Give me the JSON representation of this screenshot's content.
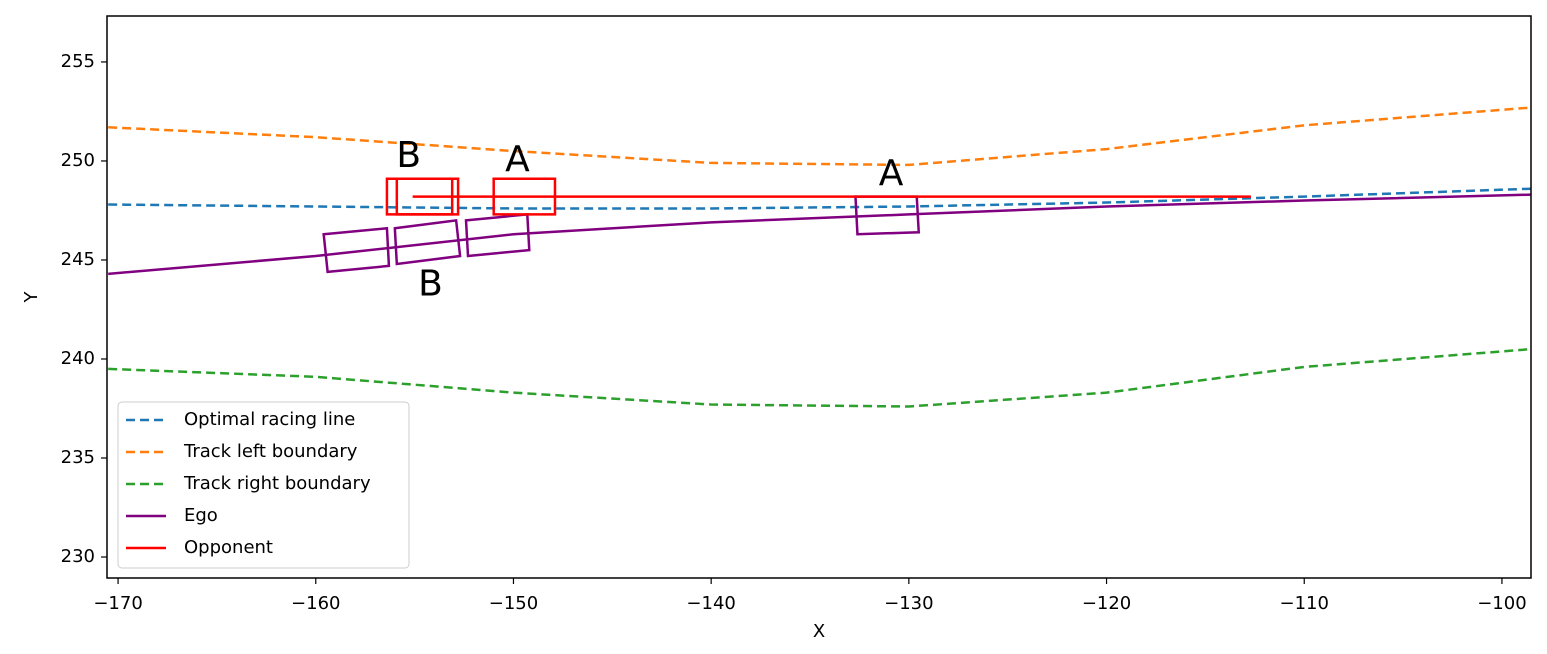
{
  "chart_data": {
    "type": "line",
    "xlabel": "X",
    "ylabel": "Y",
    "xlim": [
      -170.56,
      -98.53
    ],
    "ylim": [
      228.94,
      257.32
    ],
    "xticks": [
      {
        "value": -170,
        "label": "−170"
      },
      {
        "value": -160,
        "label": "−160"
      },
      {
        "value": -150,
        "label": "−150"
      },
      {
        "value": -140,
        "label": "−140"
      },
      {
        "value": -130,
        "label": "−130"
      },
      {
        "value": -120,
        "label": "−120"
      },
      {
        "value": -110,
        "label": "−110"
      },
      {
        "value": -100,
        "label": "−100"
      }
    ],
    "yticks": [
      230,
      235,
      240,
      245,
      250,
      255
    ],
    "legend": "lower left",
    "series": [
      {
        "name": "Optimal racing line",
        "color": "#1f77b4",
        "style": "dashed",
        "x": [
          -170.5,
          -160,
          -150,
          -140,
          -130,
          -120,
          -110,
          -98.5
        ],
        "values": [
          247.8,
          247.7,
          247.6,
          247.6,
          247.7,
          247.9,
          248.2,
          248.6
        ]
      },
      {
        "name": "Track left boundary",
        "color": "#ff7f0e",
        "style": "dashed",
        "x": [
          -170.5,
          -160,
          -150,
          -140,
          -130,
          -120,
          -110,
          -98.5
        ],
        "values": [
          251.7,
          251.2,
          250.5,
          249.9,
          249.8,
          250.6,
          251.8,
          252.7
        ]
      },
      {
        "name": "Track right boundary",
        "color": "#2ca02c",
        "style": "dashed",
        "x": [
          -170.5,
          -160,
          -150,
          -140,
          -130,
          -120,
          -110,
          -98.5
        ],
        "values": [
          239.5,
          239.1,
          238.3,
          237.7,
          237.6,
          238.3,
          239.6,
          240.5
        ]
      },
      {
        "name": "Ego",
        "color": "#800080",
        "style": "solid",
        "x": [
          -170.5,
          -160,
          -150,
          -140,
          -130,
          -120,
          -110,
          -98.5
        ],
        "values": [
          244.3,
          245.2,
          246.3,
          246.9,
          247.3,
          247.7,
          248.0,
          248.3
        ],
        "boxes": [
          {
            "x": [
              -159.6,
              -156.4,
              -156.3,
              -159.4
            ],
            "y": [
              246.3,
              246.6,
              244.7,
              244.4
            ]
          },
          {
            "x": [
              -156.0,
              -152.9,
              -152.7,
              -155.9
            ],
            "y": [
              246.6,
              247.0,
              245.2,
              244.8
            ]
          },
          {
            "x": [
              -152.4,
              -149.3,
              -149.2,
              -152.3
            ],
            "y": [
              247.0,
              247.3,
              245.5,
              245.2
            ]
          },
          {
            "x": [
              -132.7,
              -129.6,
              -129.5,
              -132.6
            ],
            "y": [
              248.2,
              248.2,
              246.4,
              246.3
            ]
          }
        ]
      },
      {
        "name": "Opponent",
        "color": "#ff0000",
        "style": "solid",
        "x": [
          -155.1,
          -112.7
        ],
        "values": [
          248.2,
          248.2
        ],
        "boxes": [
          {
            "x": [
              -156.4,
              -153.1,
              -153.1,
              -156.4
            ],
            "y": [
              249.1,
              249.1,
              247.3,
              247.3
            ]
          },
          {
            "x": [
              -155.9,
              -152.8,
              -152.8,
              -155.9
            ],
            "y": [
              249.1,
              249.1,
              247.3,
              247.3
            ]
          },
          {
            "x": [
              -151.0,
              -147.9,
              -147.9,
              -151.0
            ],
            "y": [
              249.1,
              249.1,
              247.3,
              247.3
            ]
          }
        ]
      }
    ],
    "annotations": [
      {
        "text": "B",
        "x": -155.3,
        "y": 250.2
      },
      {
        "text": "A",
        "x": -149.8,
        "y": 250.0
      },
      {
        "text": "A",
        "x": -130.9,
        "y": 249.3
      },
      {
        "text": "B",
        "x": -154.2,
        "y": 243.7
      }
    ]
  }
}
